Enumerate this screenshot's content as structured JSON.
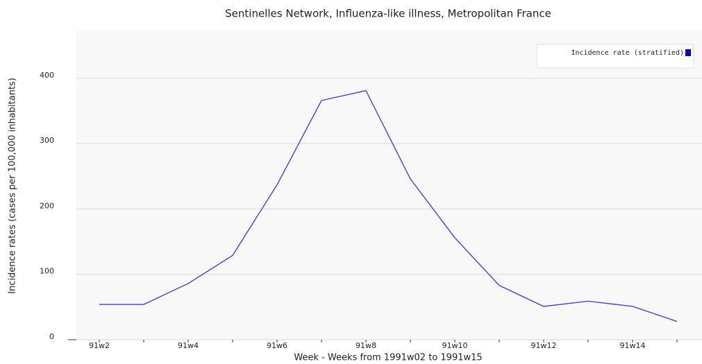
{
  "chart_data": {
    "type": "line",
    "title": "Sentinelles Network, Influenza-like illness, Metropolitan France",
    "x_label": "Week - Weeks from 1991w02 to 1991w15",
    "y_label": "Incidence rates (cases per 100,000 inhabitants)",
    "categories": [
      "91w2",
      null,
      "91w4",
      null,
      "91w6",
      null,
      "91w8",
      null,
      "91w10",
      null,
      "91w12",
      null,
      "91w14",
      null
    ],
    "series": [
      {
        "name": "Incidence rate (stratified)",
        "color": "#3333ff",
        "values": [
          54,
          54,
          86,
          129,
          237,
          366,
          381,
          246,
          156,
          83,
          51,
          59,
          51,
          28
        ]
      }
    ],
    "ylim": [
      0,
      473
    ],
    "yticks": [
      0,
      100,
      200,
      300,
      400
    ],
    "grid": true,
    "legend": "top-right"
  }
}
